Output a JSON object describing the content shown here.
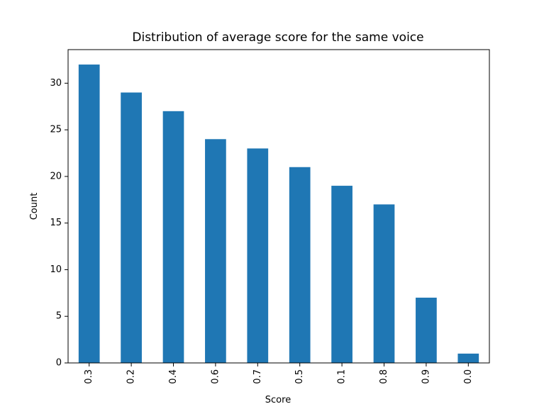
{
  "chart_data": {
    "type": "bar",
    "title": "Distribution of average score for the same voice",
    "xlabel": "Score",
    "ylabel": "Count",
    "categories": [
      "0.3",
      "0.2",
      "0.4",
      "0.6",
      "0.7",
      "0.5",
      "0.1",
      "0.8",
      "0.9",
      "0.0"
    ],
    "values": [
      32,
      29,
      27,
      24,
      23,
      21,
      19,
      17,
      7,
      1
    ],
    "ylim": [
      0,
      33.6
    ],
    "yticks": [
      0,
      5,
      10,
      15,
      20,
      25,
      30
    ],
    "grid": false,
    "legend": "none",
    "bar_color": "#1f77b4"
  }
}
